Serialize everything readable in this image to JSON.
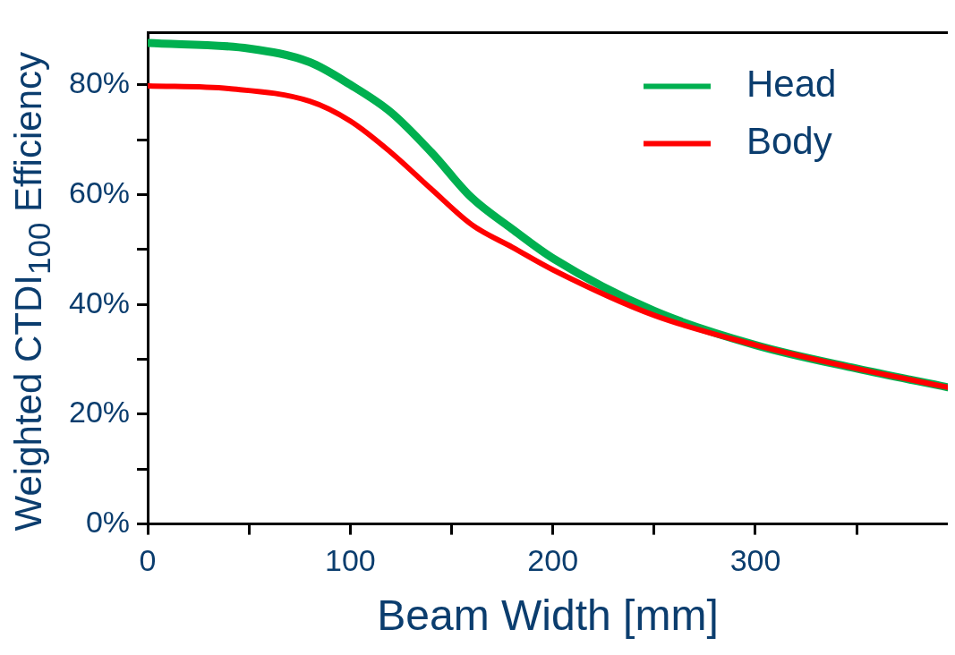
{
  "chart_data": {
    "type": "line",
    "xlabel": "Beam Width [mm]",
    "ylabel": "Weighted CTDI$_{100}$ Efficiency",
    "xlim": [
      0,
      395
    ],
    "ylim": [
      0,
      89.5
    ],
    "xticks": [
      0,
      {
        "value": 50,
        "label": null
      },
      100,
      {
        "value": 150,
        "label": null
      },
      200,
      {
        "value": 250,
        "label": null
      },
      300,
      {
        "value": 350,
        "label": null
      }
    ],
    "yticks": [
      {
        "value": 0,
        "label": "0%"
      },
      {
        "value": 10,
        "label": null
      },
      {
        "value": 20,
        "label": "20%"
      },
      {
        "value": 30,
        "label": null
      },
      {
        "value": 40,
        "label": "40%"
      },
      {
        "value": 50,
        "label": null
      },
      {
        "value": 60,
        "label": "60%"
      },
      {
        "value": 70,
        "label": null
      },
      {
        "value": 80,
        "label": "80%"
      }
    ],
    "grid": false,
    "legend": "top right",
    "marker": "none",
    "line_style": "solid",
    "series": [
      {
        "name": "Head",
        "color": "#00b050",
        "x": [
          0,
          50,
          80,
          100,
          120,
          140,
          160,
          180,
          200,
          250,
          300,
          350,
          395
        ],
        "values": [
          87.6,
          86.6,
          84.1,
          80,
          75,
          67.7,
          59.4,
          53.7,
          48.4,
          38.8,
          32.6,
          28.3,
          24.9
        ]
      },
      {
        "name": "Body",
        "color": "#ff0000",
        "x": [
          0,
          40,
          80,
          100,
          120,
          140,
          160,
          180,
          200,
          250,
          300,
          350,
          395
        ],
        "values": [
          79.8,
          79.3,
          77,
          73.4,
          67.7,
          61,
          54.5,
          50.4,
          46.3,
          38,
          32.6,
          28.3,
          24.9
        ]
      }
    ]
  }
}
